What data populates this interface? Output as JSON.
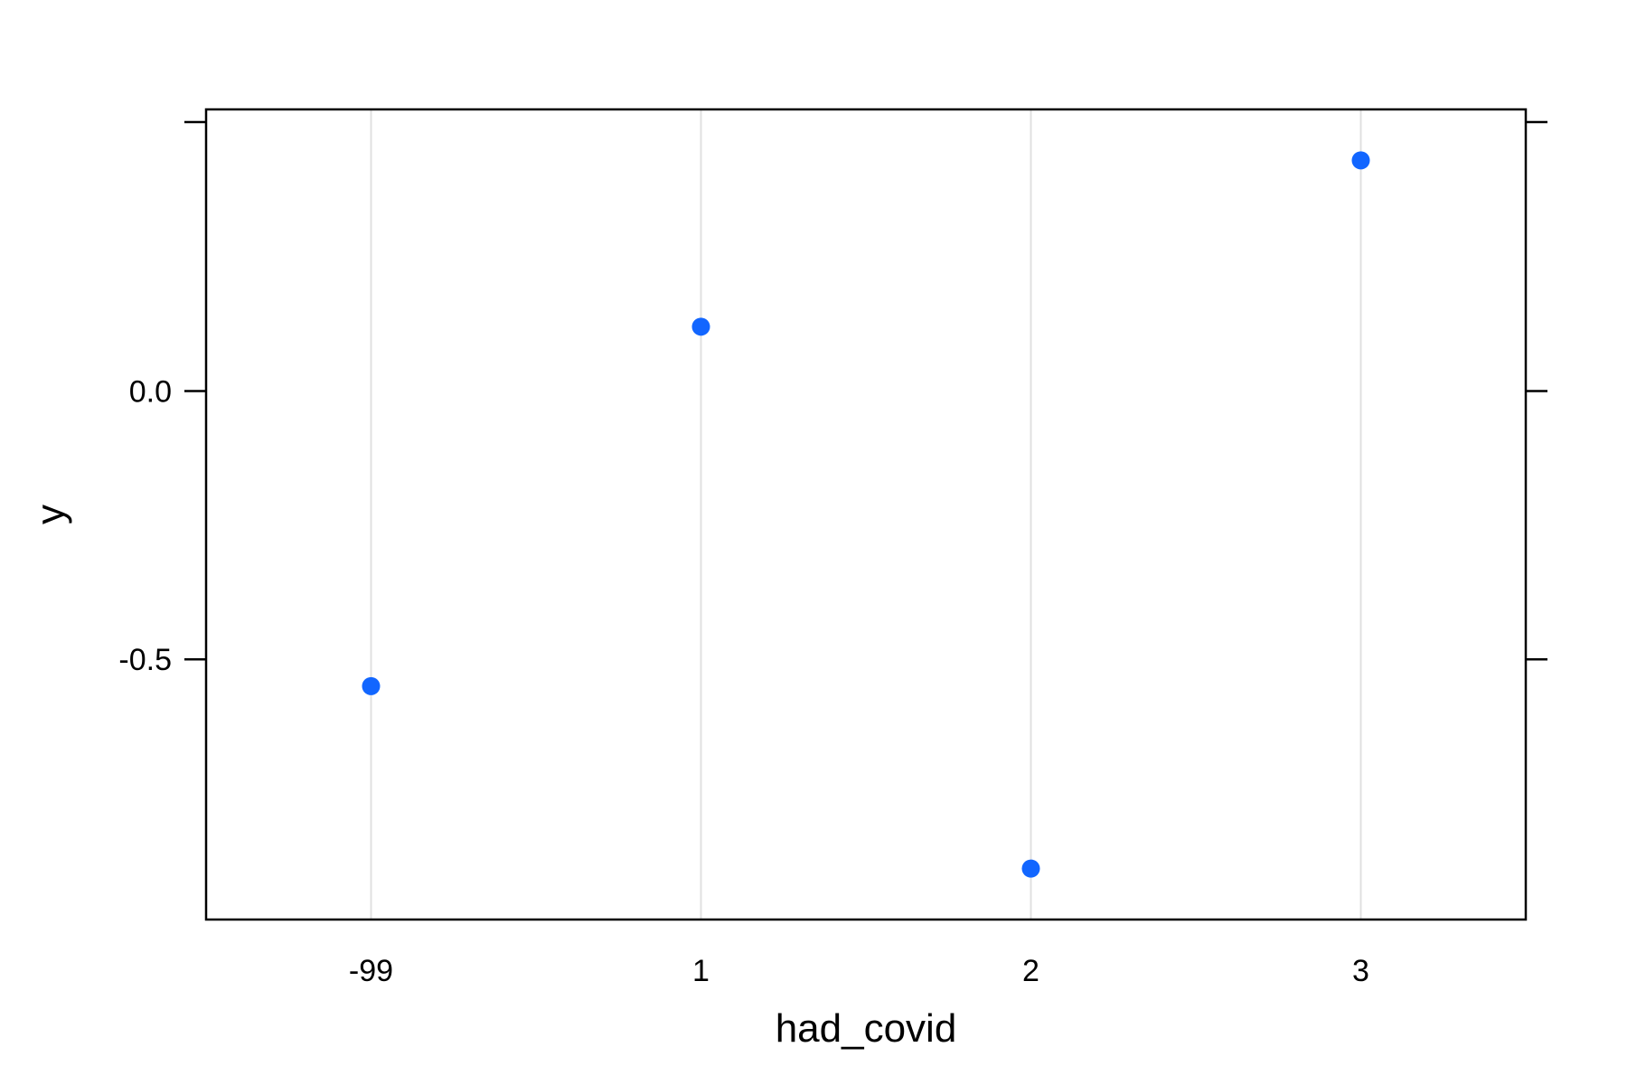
{
  "chart_data": {
    "type": "scatter",
    "title": "",
    "xlabel": "had_covid",
    "ylabel": "y",
    "categories": [
      "-99",
      "1",
      "2",
      "3"
    ],
    "values": [
      -0.55,
      0.12,
      -0.89,
      0.43
    ],
    "ylim": [
      -0.985,
      0.525
    ],
    "yticks": [
      0.0,
      -0.5
    ],
    "ytick_labels": [
      "0.0",
      "-0.5"
    ],
    "grid": "vertical",
    "colors": {
      "point": "#1266ff",
      "grid": "#e0e0e0",
      "frame": "#000000"
    }
  }
}
